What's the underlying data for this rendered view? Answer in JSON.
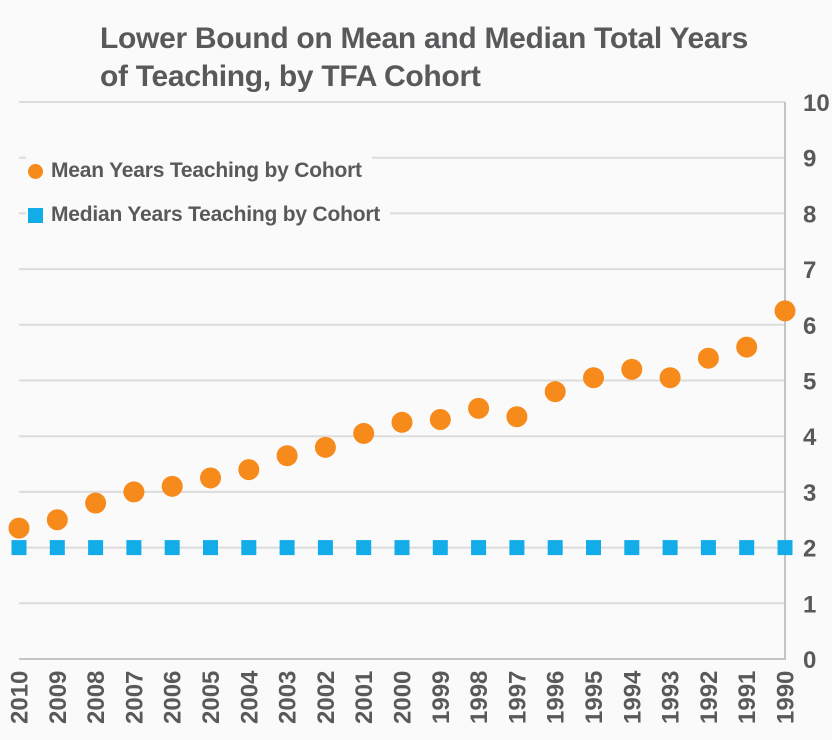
{
  "page": {
    "background": "#FAFAFA"
  },
  "title": {
    "lines": [
      "Lower Bound on Mean and Median Total Years",
      "of Teaching, by TFA Cohort"
    ],
    "color": "#58595B"
  },
  "legend": {
    "items": [
      {
        "label": "Mean Years Teaching by Cohort",
        "marker": "circle",
        "color": "#F68A1B"
      },
      {
        "label": "Median Years Teaching by Cohort",
        "marker": "square",
        "color": "#12ACE8"
      }
    ]
  },
  "chart_data": {
    "type": "scatter",
    "title": "Lower Bound on Mean and Median Total Years of Teaching, by TFA Cohort",
    "categories": [
      "2010",
      "2009",
      "2008",
      "2007",
      "2006",
      "2005",
      "2004",
      "2003",
      "2002",
      "2001",
      "2000",
      "1999",
      "1998",
      "1997",
      "1996",
      "1995",
      "1994",
      "1993",
      "1992",
      "1991",
      "1990"
    ],
    "series": [
      {
        "name": "Mean Years Teaching by Cohort",
        "marker": "circle",
        "color": "#F68A1B",
        "values": [
          2.35,
          2.5,
          2.8,
          3.0,
          3.1,
          3.25,
          3.4,
          3.65,
          3.8,
          4.05,
          4.25,
          4.3,
          4.5,
          4.35,
          4.8,
          5.05,
          5.2,
          5.05,
          5.4,
          5.6,
          6.25
        ]
      },
      {
        "name": "Median Years Teaching by Cohort",
        "marker": "square",
        "color": "#12ACE8",
        "values": [
          2,
          2,
          2,
          2,
          2,
          2,
          2,
          2,
          2,
          2,
          2,
          2,
          2,
          2,
          2,
          2,
          2,
          2,
          2,
          2,
          2
        ]
      }
    ],
    "xlabel": "",
    "ylabel": "",
    "ylim": [
      0,
      10
    ],
    "yticks": [
      0,
      1,
      2,
      3,
      4,
      5,
      6,
      7,
      8,
      9,
      10
    ],
    "y_axis_side": "right",
    "x_tick_rotation": 90,
    "grid": true,
    "legend_position": "top-left",
    "grid_color": "#DCDCDC",
    "axis_color": "#C4C4C4",
    "tick_label_color": "#58595B"
  }
}
